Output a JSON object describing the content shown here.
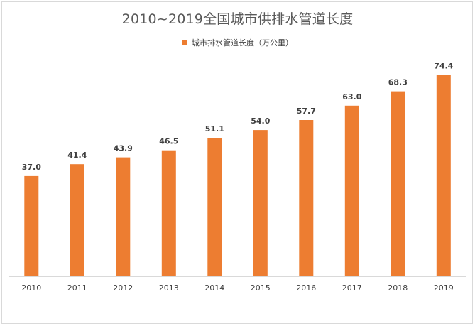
{
  "chart_data": {
    "type": "bar",
    "title": "2010~2019全国城市供排水管道长度",
    "categories": [
      "2010",
      "2011",
      "2012",
      "2013",
      "2014",
      "2015",
      "2016",
      "2017",
      "2018",
      "2019"
    ],
    "series": [
      {
        "name": "城市排水管道长度（万公里）",
        "values": [
          37.0,
          41.4,
          43.9,
          46.5,
          51.1,
          54.0,
          57.7,
          63.0,
          68.3,
          74.4
        ],
        "labels": [
          "37.0",
          "41.4",
          "43.9",
          "46.5",
          "51.1",
          "54.0",
          "57.7",
          "63.0",
          "68.3",
          "74.4"
        ],
        "color": "#ed7d31"
      }
    ],
    "ylim": [
      0,
      80
    ],
    "grid": false,
    "legend_position": "top"
  }
}
